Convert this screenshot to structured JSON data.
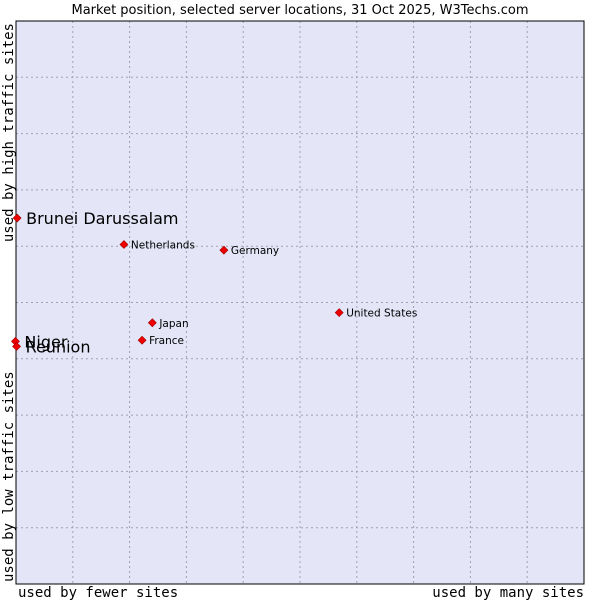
{
  "chart_data": {
    "type": "scatter",
    "title": "Market position, selected server locations, 31 Oct 2025, W3Techs.com",
    "xlabel_left": "used by fewer sites",
    "xlabel_right": "used by many sites",
    "ylabel_bottom": "used by low traffic sites",
    "ylabel_top": "used by high traffic sites",
    "grid": true,
    "xlim": [
      0,
      100
    ],
    "ylim": [
      0,
      100
    ],
    "background_color": "#e4e6f8",
    "point_color": "#ee0000",
    "points": [
      {
        "label": "Brunei Darussalam",
        "x": 0.2,
        "y": 65.0,
        "size": "large"
      },
      {
        "label": "Netherlands",
        "x": 19.0,
        "y": 60.3,
        "size": "small"
      },
      {
        "label": "Germany",
        "x": 36.6,
        "y": 59.3,
        "size": "small"
      },
      {
        "label": "United States",
        "x": 56.9,
        "y": 48.2,
        "size": "small"
      },
      {
        "label": "Japan",
        "x": 24.0,
        "y": 46.4,
        "size": "small"
      },
      {
        "label": "France",
        "x": 22.2,
        "y": 43.3,
        "size": "small"
      },
      {
        "label": "Niger",
        "x": -0.1,
        "y": 43.1,
        "size": "large"
      },
      {
        "label": "Reunion",
        "x": 0.1,
        "y": 42.2,
        "size": "large"
      }
    ]
  }
}
